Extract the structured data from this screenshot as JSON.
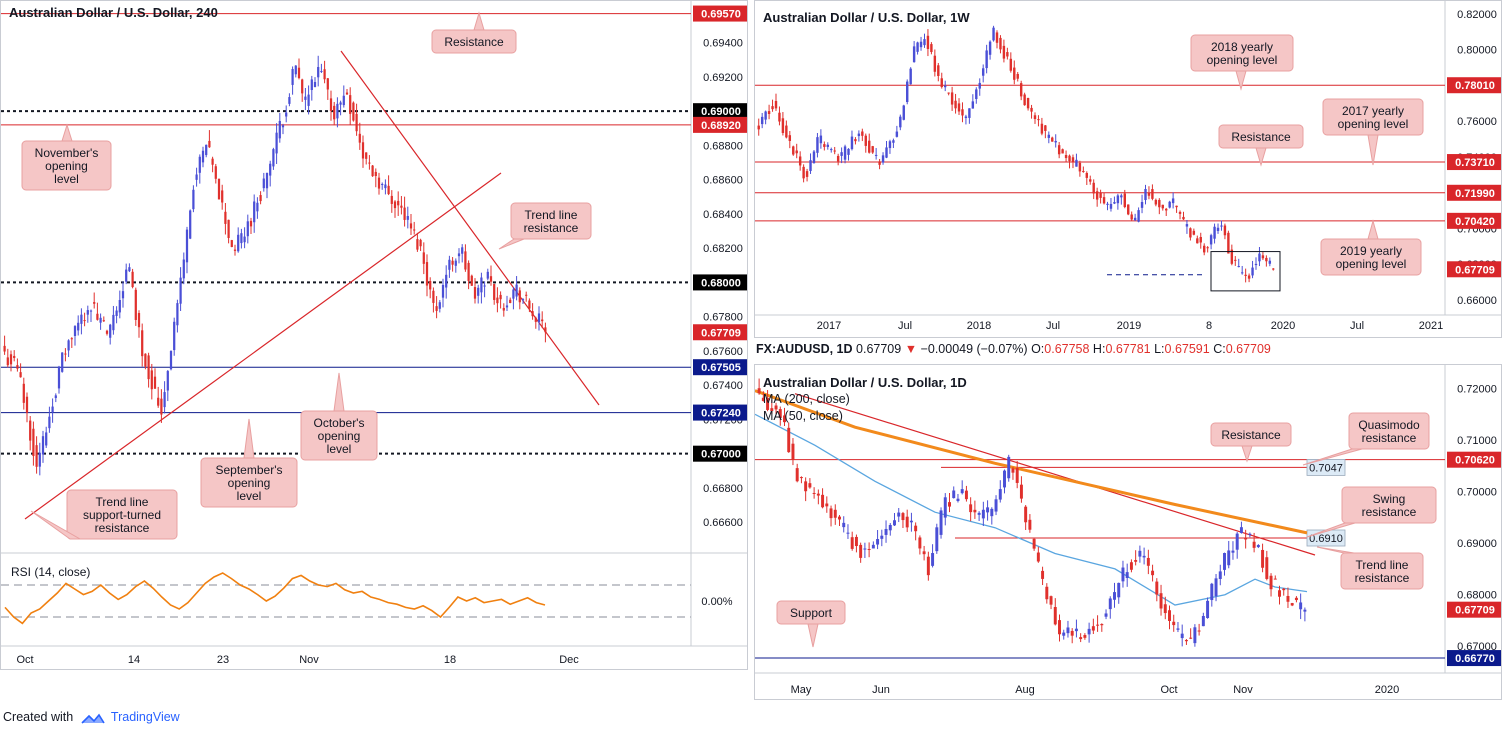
{
  "colors": {
    "up": "#4a4fd6",
    "down": "#e0302c",
    "level": "#d9262a",
    "blue_level": "#0b1a8c",
    "dotted": "#131722",
    "rsi": "#f08010",
    "ma200": "#f28a1c",
    "ma50": "#5aa6e0",
    "callout_fill": "#f5c6c6",
    "callout_border": "#e8a0a0"
  },
  "footer": {
    "prefix": "Created with",
    "brand": "TradingView"
  },
  "chart_data": [
    {
      "id": "h4",
      "type": "candlestick",
      "title": "Australian Dollar / U.S. Dollar, 240",
      "ylim": [
        0.6642,
        0.6962
      ],
      "y_ticks": [
        "0.69400",
        "0.69200",
        "0.68800",
        "0.68600",
        "0.68400",
        "0.68200",
        "0.67800",
        "0.67600",
        "0.67400",
        "0.67200",
        "0.66800",
        "0.66600"
      ],
      "x_ticks": [
        "Oct",
        "14",
        "23",
        "Nov",
        "18",
        "Dec"
      ],
      "price_labels": [
        {
          "value": "0.69570",
          "style": "red"
        },
        {
          "value": "0.69000",
          "style": "black"
        },
        {
          "value": "0.68920",
          "style": "red"
        },
        {
          "value": "0.68000",
          "style": "black"
        },
        {
          "value": "0.67709",
          "style": "red"
        },
        {
          "value": "0.67505",
          "style": "blue"
        },
        {
          "value": "0.67240",
          "style": "blue"
        },
        {
          "value": "0.67000",
          "style": "black"
        }
      ],
      "levels": [
        {
          "value": 0.6957,
          "style": "red"
        },
        {
          "value": 0.69,
          "style": "dotted"
        },
        {
          "value": 0.6892,
          "style": "red"
        },
        {
          "value": 0.68,
          "style": "dotted"
        },
        {
          "value": 0.67505,
          "style": "blue"
        },
        {
          "value": 0.6724,
          "style": "blue"
        },
        {
          "value": 0.67,
          "style": "dotted"
        }
      ],
      "last": 0.67709,
      "path": [
        [
          0,
          0.6758
        ],
        [
          4,
          0.675
        ],
        [
          10,
          0.6692
        ],
        [
          18,
          0.6758
        ],
        [
          26,
          0.6788
        ],
        [
          32,
          0.6768
        ],
        [
          38,
          0.681
        ],
        [
          42,
          0.6762
        ],
        [
          48,
          0.6724
        ],
        [
          54,
          0.68
        ],
        [
          58,
          0.6858
        ],
        [
          62,
          0.688
        ],
        [
          66,
          0.685
        ],
        [
          70,
          0.6818
        ],
        [
          74,
          0.683
        ],
        [
          80,
          0.686
        ],
        [
          86,
          0.69
        ],
        [
          89,
          0.6926
        ],
        [
          92,
          0.6905
        ],
        [
          97,
          0.6924
        ],
        [
          101,
          0.6898
        ],
        [
          105,
          0.6912
        ],
        [
          110,
          0.6874
        ],
        [
          116,
          0.6856
        ],
        [
          122,
          0.6842
        ],
        [
          128,
          0.6818
        ],
        [
          132,
          0.6782
        ],
        [
          136,
          0.6808
        ],
        [
          140,
          0.682
        ],
        [
          144,
          0.679
        ],
        [
          148,
          0.6805
        ],
        [
          152,
          0.6786
        ],
        [
          157,
          0.6796
        ],
        [
          162,
          0.6782
        ],
        [
          166,
          0.6771
        ]
      ],
      "callouts": [
        "Resistance",
        "November's opening level",
        "Trend line resistance",
        "October's opening level",
        "September's opening level",
        "Trend line support-turned resistance"
      ],
      "rsi": {
        "label": "RSI (14, close)",
        "zero_label": "0.00%",
        "series": [
          42,
          30,
          22,
          35,
          40,
          50,
          60,
          72,
          65,
          58,
          62,
          70,
          60,
          52,
          58,
          68,
          75,
          66,
          55,
          45,
          40,
          48,
          60,
          72,
          80,
          85,
          78,
          70,
          65,
          58,
          50,
          56,
          66,
          78,
          82,
          75,
          70,
          68,
          72,
          64,
          60,
          62,
          55,
          52,
          48,
          46,
          42,
          40,
          44,
          38,
          30,
          42,
          55,
          50,
          54,
          48,
          50,
          52,
          46,
          50,
          54,
          48,
          45
        ]
      },
      "annotations": {
        "rsi_label": "RSI (14, close)"
      }
    },
    {
      "id": "w1",
      "type": "candlestick",
      "title": "Australian Dollar / U.S. Dollar, 1W",
      "ylim": [
        0.6515,
        0.825
      ],
      "y_ticks": [
        "0.82000",
        "0.80000",
        "0.76000",
        "0.74000",
        "0.70000",
        "0.68000",
        "0.66000"
      ],
      "x_ticks": [
        "2017",
        "Jul",
        "2018",
        "Jul",
        "2019",
        "8",
        "2020",
        "Jul",
        "2021"
      ],
      "price_labels": [
        {
          "value": "0.78010",
          "style": "red"
        },
        {
          "value": "0.73710",
          "style": "red"
        },
        {
          "value": "0.71990",
          "style": "red"
        },
        {
          "value": "0.70420",
          "style": "red"
        },
        {
          "value": "0.67709",
          "style": "red"
        }
      ],
      "levels": [
        {
          "value": 0.7801,
          "style": "red"
        },
        {
          "value": 0.7371,
          "style": "red"
        },
        {
          "value": 0.7199,
          "style": "red"
        },
        {
          "value": 0.7042,
          "style": "red"
        }
      ],
      "last": 0.67709,
      "path": [
        [
          0,
          0.758
        ],
        [
          4,
          0.77
        ],
        [
          10,
          0.745
        ],
        [
          14,
          0.728
        ],
        [
          18,
          0.75
        ],
        [
          24,
          0.738
        ],
        [
          30,
          0.754
        ],
        [
          36,
          0.736
        ],
        [
          42,
          0.758
        ],
        [
          46,
          0.798
        ],
        [
          50,
          0.808
        ],
        [
          54,
          0.782
        ],
        [
          58,
          0.772
        ],
        [
          62,
          0.76
        ],
        [
          66,
          0.783
        ],
        [
          70,
          0.81
        ],
        [
          74,
          0.796
        ],
        [
          80,
          0.77
        ],
        [
          86,
          0.752
        ],
        [
          92,
          0.74
        ],
        [
          98,
          0.73
        ],
        [
          104,
          0.71
        ],
        [
          108,
          0.72
        ],
        [
          112,
          0.702
        ],
        [
          116,
          0.722
        ],
        [
          120,
          0.712
        ],
        [
          124,
          0.714
        ],
        [
          128,
          0.7
        ],
        [
          134,
          0.688
        ],
        [
          138,
          0.705
        ],
        [
          142,
          0.68
        ],
        [
          146,
          0.672
        ],
        [
          150,
          0.686
        ],
        [
          154,
          0.677
        ]
      ],
      "callouts": [
        "2018 yearly opening level",
        "2017 yearly opening level",
        "Resistance",
        "2019 yearly opening level"
      ]
    },
    {
      "id": "d1",
      "type": "candlestick",
      "title": "Australian Dollar / U.S. Dollar, 1D",
      "ohlc": {
        "symbol": "FX:AUDUSD, 1D",
        "last": "0.67709",
        "change": "−0.00049 (−0.07%)",
        "o": "0.67758",
        "h": "0.67781",
        "l": "0.67591",
        "c": "0.67709"
      },
      "ylim": [
        0.6648,
        0.7238
      ],
      "y_ticks": [
        "0.72000",
        "0.71000",
        "0.70000",
        "0.69000",
        "0.68000",
        "0.67000"
      ],
      "x_ticks": [
        "May",
        "Jun",
        "Aug",
        "Oct",
        "Nov",
        "2020"
      ],
      "price_labels": [
        {
          "value": "0.70620",
          "style": "red"
        },
        {
          "value": "0.67709",
          "style": "red"
        },
        {
          "value": "0.66770",
          "style": "blue"
        }
      ],
      "level_labels": [
        "0.7047",
        "0.6910"
      ],
      "levels": [
        {
          "value": 0.7062,
          "style": "red"
        },
        {
          "value": 0.7047,
          "style": "red"
        },
        {
          "value": 0.691,
          "style": "red"
        },
        {
          "value": 0.6677,
          "style": "blue"
        }
      ],
      "last": 0.67709,
      "moving_averages": [
        {
          "name": "MA (200, close)"
        },
        {
          "name": "MA (50, close)"
        }
      ],
      "path": [
        [
          0,
          0.718
        ],
        [
          8,
          0.715
        ],
        [
          14,
          0.702
        ],
        [
          22,
          0.699
        ],
        [
          30,
          0.693
        ],
        [
          38,
          0.688
        ],
        [
          44,
          0.691
        ],
        [
          50,
          0.696
        ],
        [
          56,
          0.693
        ],
        [
          62,
          0.685
        ],
        [
          68,
          0.698
        ],
        [
          74,
          0.7
        ],
        [
          80,
          0.694
        ],
        [
          86,
          0.697
        ],
        [
          92,
          0.706
        ],
        [
          98,
          0.694
        ],
        [
          104,
          0.682
        ],
        [
          110,
          0.673
        ],
        [
          118,
          0.672
        ],
        [
          126,
          0.675
        ],
        [
          134,
          0.685
        ],
        [
          140,
          0.688
        ],
        [
          146,
          0.68
        ],
        [
          152,
          0.673
        ],
        [
          158,
          0.67
        ],
        [
          164,
          0.678
        ],
        [
          170,
          0.686
        ],
        [
          176,
          0.692
        ],
        [
          182,
          0.69
        ],
        [
          188,
          0.682
        ],
        [
          194,
          0.679
        ],
        [
          200,
          0.6771
        ]
      ],
      "callouts": [
        "Resistance",
        "Quasimodo resistance",
        "Swing resistance",
        "Trend line resistance",
        "Support"
      ]
    }
  ]
}
